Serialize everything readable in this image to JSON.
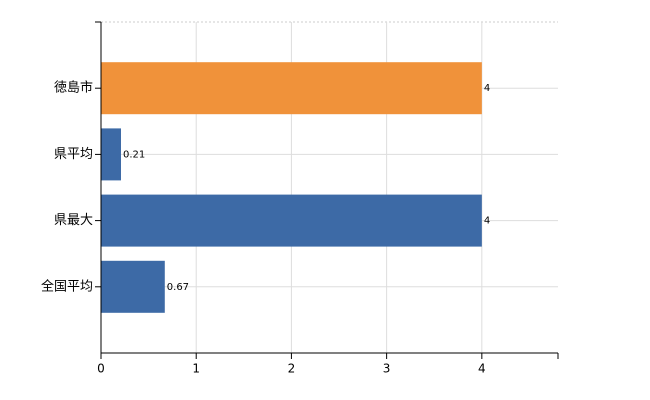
{
  "chart_data": {
    "type": "barh",
    "categories": [
      "徳島市",
      "県平均",
      "県最大",
      "全国平均"
    ],
    "values": [
      4,
      0.21,
      4,
      0.67
    ],
    "colors": [
      "#f0923a",
      "#3d6aa6",
      "#3d6aa6",
      "#3d6aa6"
    ],
    "xlim": [
      0,
      4.8
    ],
    "xticks": [
      0,
      1,
      2,
      3,
      4
    ],
    "grid": true
  }
}
